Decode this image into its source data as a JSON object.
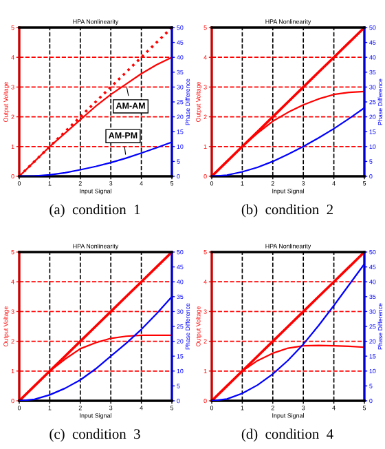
{
  "chart_data": [
    {
      "type": "line",
      "title": "HPA Nonlinearity",
      "xlabel": "Input Signal",
      "ylabel": "Output Voltage",
      "y2label": "Phase Difference",
      "annotations": [
        "(a)  condition  1"
      ],
      "x": [
        0,
        0.5,
        1,
        1.5,
        2,
        2.5,
        3,
        3.5,
        4,
        4.5,
        5
      ],
      "xlim": [
        0,
        5
      ],
      "xticks": [
        0,
        1,
        2,
        3,
        4,
        5
      ],
      "ylim": [
        0,
        5
      ],
      "yticks": [
        0,
        1,
        2,
        3,
        4,
        5
      ],
      "y2lim": [
        0,
        50
      ],
      "y2ticks": [
        0,
        5,
        10,
        15,
        20,
        25,
        30,
        35,
        40,
        45,
        50
      ],
      "grid": true,
      "series": [
        {
          "color": "#ff0000",
          "line_style": "dotted",
          "values": [
            0,
            0.5,
            1,
            1.5,
            2,
            2.5,
            3,
            3.5,
            4,
            4.5,
            5
          ]
        },
        {
          "name": "AM-AM",
          "color": "#ff0000",
          "values": [
            0,
            0.5,
            1.0,
            1.45,
            1.9,
            2.35,
            2.75,
            3.1,
            3.45,
            3.75,
            4.0
          ]
        },
        {
          "name": "AM-PM",
          "color": "#0000ff",
          "axis": "y2",
          "values": [
            0,
            0.1,
            0.5,
            1.2,
            2.2,
            3.3,
            4.6,
            6.1,
            7.8,
            9.6,
            11.5
          ]
        }
      ]
    },
    {
      "type": "line",
      "title": "HPA Nonlinearity",
      "xlabel": "Input Signal",
      "ylabel": "Output Voltage",
      "y2label": "Phase Difference",
      "annotations": [
        "(b)  condition  2"
      ],
      "x": [
        0,
        0.5,
        1,
        1.5,
        2,
        2.5,
        3,
        3.5,
        4,
        4.5,
        5
      ],
      "xlim": [
        0,
        5
      ],
      "xticks": [
        0,
        1,
        2,
        3,
        4,
        5
      ],
      "ylim": [
        0,
        5
      ],
      "yticks": [
        0,
        1,
        2,
        3,
        4,
        5
      ],
      "y2lim": [
        0,
        50
      ],
      "y2ticks": [
        0,
        5,
        10,
        15,
        20,
        25,
        30,
        35,
        40,
        45,
        50
      ],
      "grid": true,
      "series": [
        {
          "color": "#ff0000",
          "line_style": "solid",
          "values": [
            0,
            0.5,
            1,
            1.5,
            2,
            2.5,
            3,
            3.5,
            4,
            4.5,
            5
          ]
        },
        {
          "color": "#ff0000",
          "values": [
            0,
            0.5,
            1.0,
            1.45,
            1.85,
            2.15,
            2.4,
            2.6,
            2.75,
            2.82,
            2.85
          ]
        },
        {
          "color": "#0000ff",
          "axis": "y2",
          "values": [
            0,
            0.4,
            1.5,
            3,
            5,
            7.4,
            10,
            12.9,
            16,
            19.4,
            23
          ]
        }
      ]
    },
    {
      "type": "line",
      "title": "HPA Nonlinearity",
      "xlabel": "Input Signal",
      "ylabel": "Output Voltage",
      "y2label": "Phase Difference",
      "annotations": [
        "(c)  condition  3"
      ],
      "x": [
        0,
        0.5,
        1,
        1.5,
        2,
        2.5,
        3,
        3.5,
        4,
        4.5,
        5
      ],
      "xlim": [
        0,
        5
      ],
      "xticks": [
        0,
        1,
        2,
        3,
        4,
        5
      ],
      "ylim": [
        0,
        5
      ],
      "yticks": [
        0,
        1,
        2,
        3,
        4,
        5
      ],
      "y2lim": [
        0,
        50
      ],
      "y2ticks": [
        0,
        5,
        10,
        15,
        20,
        25,
        30,
        35,
        40,
        45,
        50
      ],
      "grid": true,
      "series": [
        {
          "color": "#ff0000",
          "line_style": "solid",
          "values": [
            0,
            0.5,
            1,
            1.5,
            2,
            2.5,
            3,
            3.5,
            4,
            4.5,
            5
          ]
        },
        {
          "color": "#ff0000",
          "values": [
            0,
            0.5,
            1.0,
            1.4,
            1.75,
            1.95,
            2.1,
            2.17,
            2.2,
            2.2,
            2.2
          ]
        },
        {
          "color": "#0000ff",
          "axis": "y2",
          "values": [
            0,
            0.5,
            2,
            4.2,
            7,
            10.7,
            15,
            19.3,
            24,
            29.3,
            35
          ]
        }
      ]
    },
    {
      "type": "line",
      "title": "HPA Nonlinearity",
      "xlabel": "Input Signal",
      "ylabel": "Output Voltage",
      "y2label": "Phase Difference",
      "annotations": [
        "(d)  condition  4"
      ],
      "x": [
        0,
        0.5,
        1,
        1.5,
        2,
        2.5,
        3,
        3.5,
        4,
        4.5,
        5
      ],
      "xlim": [
        0,
        5
      ],
      "xticks": [
        0,
        1,
        2,
        3,
        4,
        5
      ],
      "ylim": [
        0,
        5
      ],
      "yticks": [
        0,
        1,
        2,
        3,
        4,
        5
      ],
      "y2lim": [
        0,
        50
      ],
      "y2ticks": [
        0,
        5,
        10,
        15,
        20,
        25,
        30,
        35,
        40,
        45,
        50
      ],
      "grid": true,
      "series": [
        {
          "color": "#ff0000",
          "line_style": "solid",
          "values": [
            0,
            0.5,
            1,
            1.5,
            2,
            2.5,
            3,
            3.5,
            4,
            4.5,
            5
          ]
        },
        {
          "color": "#ff0000",
          "values": [
            0,
            0.5,
            1.0,
            1.35,
            1.6,
            1.77,
            1.85,
            1.86,
            1.85,
            1.83,
            1.8
          ]
        },
        {
          "color": "#0000ff",
          "axis": "y2",
          "values": [
            0,
            0.6,
            2.5,
            5.3,
            9,
            13.6,
            19,
            25.3,
            32,
            39,
            46
          ]
        }
      ]
    }
  ]
}
